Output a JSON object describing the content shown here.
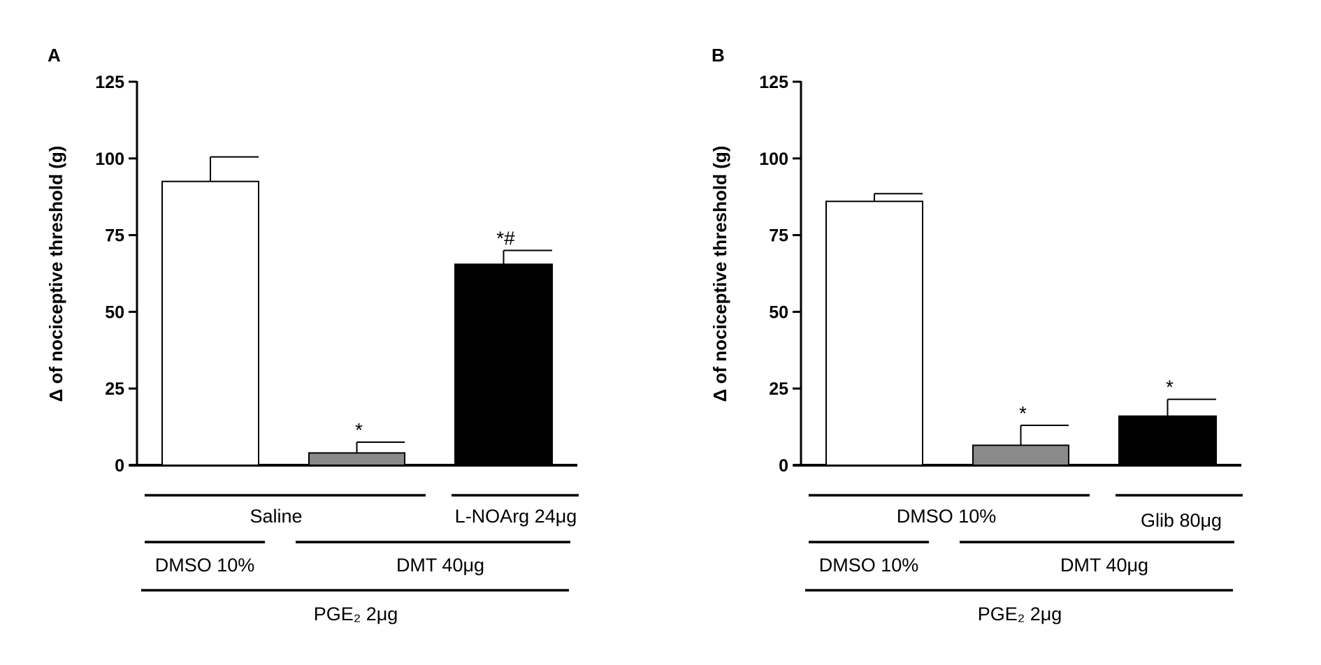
{
  "chart_data": [
    {
      "type": "bar",
      "panel_label": "A",
      "ylabel": "Δ of nociceptive threshold (g)",
      "ylim": [
        0,
        125
      ],
      "yticks": [
        0,
        25,
        50,
        75,
        100,
        125
      ],
      "grid": false,
      "bars": [
        {
          "value": 92.5,
          "error": 8,
          "color": "#ffffff",
          "annotation": ""
        },
        {
          "value": 4,
          "error": 3.5,
          "color": "#8a8a8a",
          "annotation": "*"
        },
        {
          "value": 65.5,
          "error": 4.5,
          "color": "#000000",
          "annotation": "*#"
        }
      ],
      "treatment_rows": [
        [
          {
            "label": "Saline",
            "bars": [
              0,
              1
            ]
          },
          {
            "label": "L-NOArg 24μg",
            "bars": [
              2,
              2
            ]
          }
        ],
        [
          {
            "label": "DMSO 10%",
            "bars": [
              0,
              0
            ]
          },
          {
            "label": "DMT 40μg",
            "bars": [
              1,
              2
            ]
          }
        ],
        [
          {
            "label": "PGE₂ 2μg",
            "bars": [
              0,
              2
            ]
          }
        ]
      ]
    },
    {
      "type": "bar",
      "panel_label": "B",
      "ylabel": "Δ of nociceptive threshold (g)",
      "ylim": [
        0,
        125
      ],
      "yticks": [
        0,
        25,
        50,
        75,
        100,
        125
      ],
      "grid": false,
      "bars": [
        {
          "value": 86,
          "error": 2.5,
          "color": "#ffffff",
          "annotation": ""
        },
        {
          "value": 6.5,
          "error": 6.5,
          "color": "#8a8a8a",
          "annotation": "*"
        },
        {
          "value": 16,
          "error": 5.5,
          "color": "#000000",
          "annotation": "*"
        }
      ],
      "treatment_rows": [
        [
          {
            "label": "DMSO 10%",
            "bars": [
              0,
              1
            ]
          },
          {
            "label": "Glib 80μg",
            "bars": [
              2,
              2
            ]
          }
        ],
        [
          {
            "label": "DMSO 10%",
            "bars": [
              0,
              0
            ]
          },
          {
            "label": "DMT 40μg",
            "bars": [
              1,
              2
            ]
          }
        ],
        [
          {
            "label": "PGE₂ 2μg",
            "bars": [
              0,
              2
            ]
          }
        ]
      ]
    }
  ]
}
